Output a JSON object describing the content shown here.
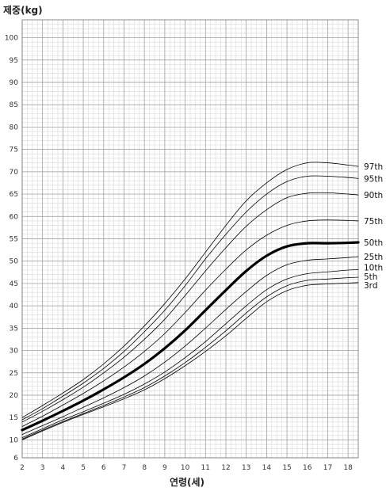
{
  "chart_data": {
    "type": "line",
    "ylabel": "제중(kg)",
    "xlabel": "연령(세)",
    "xlim": [
      2,
      18.5
    ],
    "ylim": [
      6,
      104
    ],
    "xticks": [
      2,
      3,
      4,
      5,
      6,
      7,
      8,
      9,
      10,
      11,
      12,
      13,
      14,
      15,
      16,
      17,
      18
    ],
    "yticks": [
      6,
      10,
      15,
      20,
      25,
      30,
      35,
      40,
      45,
      50,
      55,
      60,
      65,
      70,
      75,
      80,
      85,
      90,
      95,
      100
    ],
    "grid": true,
    "x": [
      2,
      3,
      4,
      5,
      6,
      7,
      8,
      9,
      10,
      11,
      12,
      13,
      14,
      15,
      16,
      17,
      18,
      18.5
    ],
    "series": [
      {
        "name": "97th",
        "values": [
          15,
          17.7,
          20.5,
          23.5,
          27,
          31,
          35.5,
          40.5,
          46,
          52,
          58,
          63.5,
          67.5,
          70.5,
          72,
          72,
          71.5,
          71.2
        ]
      },
      {
        "name": "95th",
        "values": [
          14.5,
          17,
          19.8,
          22.7,
          26,
          29.8,
          34.2,
          39,
          44.5,
          50.5,
          56,
          61,
          65,
          67.8,
          69,
          69,
          68.7,
          68.5
        ]
      },
      {
        "name": "90th",
        "values": [
          14,
          16.4,
          19,
          21.8,
          25,
          28.5,
          32.5,
          37,
          42.3,
          47.8,
          53,
          57.8,
          61.5,
          64.2,
          65.2,
          65.3,
          65,
          64.8
        ]
      },
      {
        "name": "75th",
        "values": [
          13,
          15.3,
          17.8,
          20.4,
          23.2,
          26.3,
          29.8,
          33.8,
          38.5,
          43.5,
          48.2,
          52.5,
          55.8,
          58,
          59,
          59.2,
          59.1,
          59
        ]
      },
      {
        "name": "50th",
        "values": [
          12.2,
          14.3,
          16.5,
          18.8,
          21.3,
          24,
          27,
          30.5,
          34.5,
          39,
          43.5,
          47.8,
          51.2,
          53.3,
          54,
          54,
          54.1,
          54.2
        ]
      },
      {
        "name": "25th",
        "values": [
          11.2,
          13.2,
          15.2,
          17.3,
          19.4,
          21.7,
          24.3,
          27.4,
          31,
          35,
          39.2,
          43.2,
          46.8,
          49.2,
          50.2,
          50.5,
          50.8,
          51
        ]
      },
      {
        "name": "10th",
        "values": [
          10.5,
          12.5,
          14.5,
          16.3,
          18.2,
          20.2,
          22.5,
          25.2,
          28.4,
          32,
          36,
          40,
          43.6,
          46,
          47.2,
          47.6,
          48,
          48.1
        ]
      },
      {
        "name": "5th",
        "values": [
          10.2,
          12.2,
          14.1,
          15.9,
          17.7,
          19.6,
          21.7,
          24.3,
          27.3,
          30.7,
          34.4,
          38.4,
          42,
          44.5,
          45.7,
          46,
          46.3,
          46.4
        ]
      },
      {
        "name": "3rd",
        "values": [
          10,
          12,
          13.9,
          15.7,
          17.4,
          19.2,
          21.2,
          23.7,
          26.6,
          29.8,
          33.3,
          37.2,
          40.9,
          43.4,
          44.6,
          44.9,
          45.1,
          45.2
        ]
      }
    ],
    "emphasized_series": "50th",
    "labels": [
      "97th",
      "95th",
      "90th",
      "75th",
      "50th",
      "25th",
      "10th",
      "5th",
      "3rd"
    ]
  }
}
